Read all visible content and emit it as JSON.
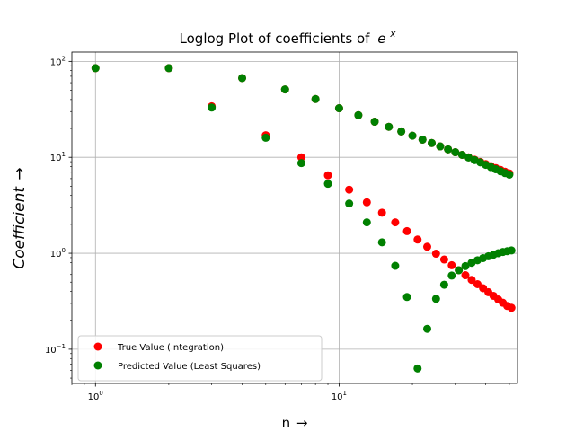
{
  "chart_data": {
    "type": "scatter",
    "title": "Loglog Plot of coefficients of",
    "title_math": "e",
    "title_math_sup": "x",
    "xlabel": "n",
    "xlabel_arrow": "→",
    "ylabel": "Coefficient",
    "ylabel_arrow": "→",
    "xscale": "log",
    "yscale": "log",
    "xlim": [
      0.8,
      54
    ],
    "ylim": [
      0.044,
      125
    ],
    "grid": true,
    "legend_position": "lower-left",
    "x_ticks": [
      {
        "value": 1,
        "base": "10",
        "exp": "0"
      },
      {
        "value": 10,
        "base": "10",
        "exp": "1"
      }
    ],
    "y_ticks": [
      {
        "value": 0.1,
        "base": "10",
        "exp": "−1"
      },
      {
        "value": 1,
        "base": "10",
        "exp": "0"
      },
      {
        "value": 10,
        "base": "10",
        "exp": "1"
      },
      {
        "value": 100,
        "base": "10",
        "exp": "2"
      }
    ],
    "series": [
      {
        "name": "True Value (Integration)",
        "color": "#ff0000",
        "points": [
          [
            1,
            85
          ],
          [
            2,
            85
          ],
          [
            3,
            34
          ],
          [
            5,
            17
          ],
          [
            7,
            10
          ],
          [
            9,
            6.5
          ],
          [
            11,
            4.6
          ],
          [
            13,
            3.4
          ],
          [
            15,
            2.65
          ],
          [
            17,
            2.1
          ],
          [
            19,
            1.7
          ],
          [
            21,
            1.39
          ],
          [
            23,
            1.17
          ],
          [
            25,
            0.99
          ],
          [
            27,
            0.86
          ],
          [
            29,
            0.75
          ],
          [
            31,
            0.665
          ],
          [
            33,
            0.59
          ],
          [
            35,
            0.528
          ],
          [
            37,
            0.476
          ],
          [
            39,
            0.432
          ],
          [
            41,
            0.393
          ],
          [
            43,
            0.36
          ],
          [
            45,
            0.33
          ],
          [
            47,
            0.305
          ],
          [
            49,
            0.282
          ],
          [
            51,
            0.27
          ],
          [
            4,
            67
          ],
          [
            6,
            51
          ],
          [
            8,
            40.5
          ],
          [
            10,
            32.5
          ],
          [
            12,
            27.5
          ],
          [
            14,
            23.5
          ],
          [
            16,
            20.8
          ],
          [
            18,
            18.6
          ],
          [
            20,
            16.8
          ],
          [
            22,
            15.3
          ],
          [
            24,
            14.1
          ],
          [
            26,
            13.0
          ],
          [
            28,
            12.1
          ],
          [
            30,
            11.3
          ],
          [
            32,
            10.6
          ],
          [
            34,
            10.0
          ],
          [
            36,
            9.45
          ],
          [
            38,
            8.95
          ],
          [
            40,
            8.5
          ],
          [
            42,
            8.1
          ],
          [
            44,
            7.72
          ],
          [
            46,
            7.38
          ],
          [
            48,
            7.07
          ],
          [
            50,
            6.8
          ]
        ]
      },
      {
        "name": "Predicted Value (Least Squares)",
        "color": "#008000",
        "points": [
          [
            1,
            85
          ],
          [
            2,
            85
          ],
          [
            3,
            33
          ],
          [
            5,
            16
          ],
          [
            7,
            8.7
          ],
          [
            9,
            5.3
          ],
          [
            11,
            3.3
          ],
          [
            13,
            2.1
          ],
          [
            15,
            1.3
          ],
          [
            17,
            0.74
          ],
          [
            19,
            0.35
          ],
          [
            21,
            0.063
          ],
          [
            23,
            0.163
          ],
          [
            25,
            0.335
          ],
          [
            27,
            0.47
          ],
          [
            29,
            0.585
          ],
          [
            31,
            0.665
          ],
          [
            33,
            0.735
          ],
          [
            35,
            0.795
          ],
          [
            37,
            0.845
          ],
          [
            39,
            0.89
          ],
          [
            41,
            0.93
          ],
          [
            43,
            0.965
          ],
          [
            45,
            1.0
          ],
          [
            47,
            1.03
          ],
          [
            49,
            1.05
          ],
          [
            51,
            1.07
          ],
          [
            4,
            67
          ],
          [
            6,
            51
          ],
          [
            8,
            40.5
          ],
          [
            10,
            32.5
          ],
          [
            12,
            27.5
          ],
          [
            14,
            23.5
          ],
          [
            16,
            20.8
          ],
          [
            18,
            18.6
          ],
          [
            20,
            16.8
          ],
          [
            22,
            15.3
          ],
          [
            24,
            14.1
          ],
          [
            26,
            13.0
          ],
          [
            28,
            12.1
          ],
          [
            30,
            11.3
          ],
          [
            32,
            10.6
          ],
          [
            34,
            9.95
          ],
          [
            36,
            9.35
          ],
          [
            38,
            8.85
          ],
          [
            40,
            8.35
          ],
          [
            42,
            7.9
          ],
          [
            44,
            7.5
          ],
          [
            46,
            7.15
          ],
          [
            48,
            6.85
          ],
          [
            50,
            6.6
          ]
        ]
      }
    ]
  }
}
